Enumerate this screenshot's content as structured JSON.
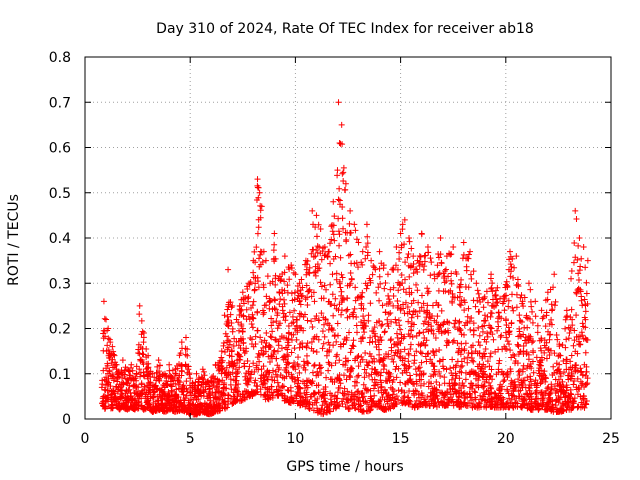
{
  "chart_data": {
    "type": "scatter",
    "title": "Day 310 of 2024, Rate Of TEC Index for receiver ab18",
    "xlabel": "GPS time / hours",
    "ylabel": "ROTI / TECUs",
    "xlim": [
      0,
      25
    ],
    "ylim": [
      0,
      0.8
    ],
    "xticks": [
      "0",
      "5",
      "10",
      "15",
      "20",
      "25"
    ],
    "yticks": [
      "0",
      "0.1",
      "0.2",
      "0.3",
      "0.4",
      "0.5",
      "0.6",
      "0.7",
      "0.8"
    ],
    "grid": true,
    "marker": "plus",
    "color": "#ff0000",
    "series": [
      {
        "x": [
          0.8,
          0.9,
          1.0,
          1.1,
          1.2,
          1.3,
          1.4,
          1.5,
          1.6,
          1.8,
          2.0,
          2.2,
          2.4,
          2.6,
          2.8,
          3.0,
          3.2,
          3.5,
          3.8,
          4.0,
          4.3,
          4.6,
          4.8,
          5.0,
          5.3,
          5.6,
          5.9,
          6.2,
          6.5,
          6.8,
          7.0,
          7.2,
          7.5,
          7.8,
          8.0,
          8.2,
          8.3,
          8.4,
          8.5,
          8.6,
          8.8,
          9.0,
          9.2,
          9.5,
          9.8,
          10.0,
          10.2,
          10.5,
          10.8,
          11.0,
          11.2,
          11.4,
          11.6,
          11.8,
          12.0,
          12.05,
          12.1,
          12.2,
          12.4,
          12.6,
          12.8,
          13.0,
          13.2,
          13.4,
          13.6,
          13.8,
          14.0,
          14.2,
          14.4,
          14.6,
          14.8,
          15.0,
          15.1,
          15.2,
          15.4,
          15.6,
          15.8,
          16.0,
          16.3,
          16.6,
          16.9,
          17.2,
          17.5,
          17.8,
          18.0,
          18.3,
          18.6,
          19.0,
          19.3,
          19.6,
          19.9,
          20.2,
          20.5,
          20.8,
          21.1,
          21.4,
          21.7,
          22.0,
          22.3,
          22.6,
          22.9,
          23.1,
          23.3,
          23.5,
          23.7,
          23.9
        ],
        "y": [
          0.07,
          0.26,
          0.22,
          0.2,
          0.17,
          0.16,
          0.14,
          0.12,
          0.1,
          0.13,
          0.11,
          0.12,
          0.09,
          0.25,
          0.19,
          0.14,
          0.1,
          0.13,
          0.1,
          0.12,
          0.11,
          0.17,
          0.18,
          0.09,
          0.1,
          0.11,
          0.08,
          0.12,
          0.15,
          0.33,
          0.25,
          0.22,
          0.28,
          0.3,
          0.35,
          0.53,
          0.5,
          0.47,
          0.37,
          0.35,
          0.3,
          0.41,
          0.31,
          0.36,
          0.34,
          0.32,
          0.3,
          0.35,
          0.46,
          0.45,
          0.42,
          0.38,
          0.37,
          0.48,
          0.55,
          0.7,
          0.61,
          0.65,
          0.52,
          0.46,
          0.43,
          0.39,
          0.37,
          0.43,
          0.35,
          0.33,
          0.37,
          0.34,
          0.32,
          0.33,
          0.38,
          0.41,
          0.43,
          0.44,
          0.4,
          0.36,
          0.35,
          0.41,
          0.38,
          0.32,
          0.4,
          0.36,
          0.38,
          0.29,
          0.39,
          0.37,
          0.3,
          0.27,
          0.32,
          0.29,
          0.27,
          0.37,
          0.36,
          0.26,
          0.3,
          0.26,
          0.24,
          0.28,
          0.32,
          0.14,
          0.24,
          0.31,
          0.46,
          0.4,
          0.38,
          0.35
        ],
        "floor_y": [
          0.03,
          0.04,
          0.05,
          0.06,
          0.05,
          0.04,
          0.05,
          0.06,
          0.04,
          0.05,
          0.04,
          0.05,
          0.04,
          0.05,
          0.04,
          0.05,
          0.03,
          0.04,
          0.03,
          0.04,
          0.03,
          0.04,
          0.03,
          0.02,
          0.02,
          0.03,
          0.02,
          0.03,
          0.04,
          0.05,
          0.06,
          0.08,
          0.08,
          0.1,
          0.1,
          0.12,
          0.12,
          0.1,
          0.1,
          0.08,
          0.08,
          0.1,
          0.1,
          0.08,
          0.07,
          0.08,
          0.06,
          0.05,
          0.04,
          0.03,
          0.02,
          0.02,
          0.03,
          0.04,
          0.05,
          0.06,
          0.05,
          0.06,
          0.05,
          0.04,
          0.05,
          0.04,
          0.03,
          0.03,
          0.04,
          0.05,
          0.05,
          0.04,
          0.04,
          0.05,
          0.06,
          0.06,
          0.07,
          0.07,
          0.06,
          0.05,
          0.05,
          0.06,
          0.06,
          0.05,
          0.05,
          0.06,
          0.06,
          0.05,
          0.06,
          0.05,
          0.05,
          0.05,
          0.05,
          0.05,
          0.05,
          0.05,
          0.05,
          0.05,
          0.04,
          0.04,
          0.04,
          0.04,
          0.03,
          0.03,
          0.04,
          0.04,
          0.05,
          0.05,
          0.05,
          0.04
        ]
      }
    ]
  }
}
